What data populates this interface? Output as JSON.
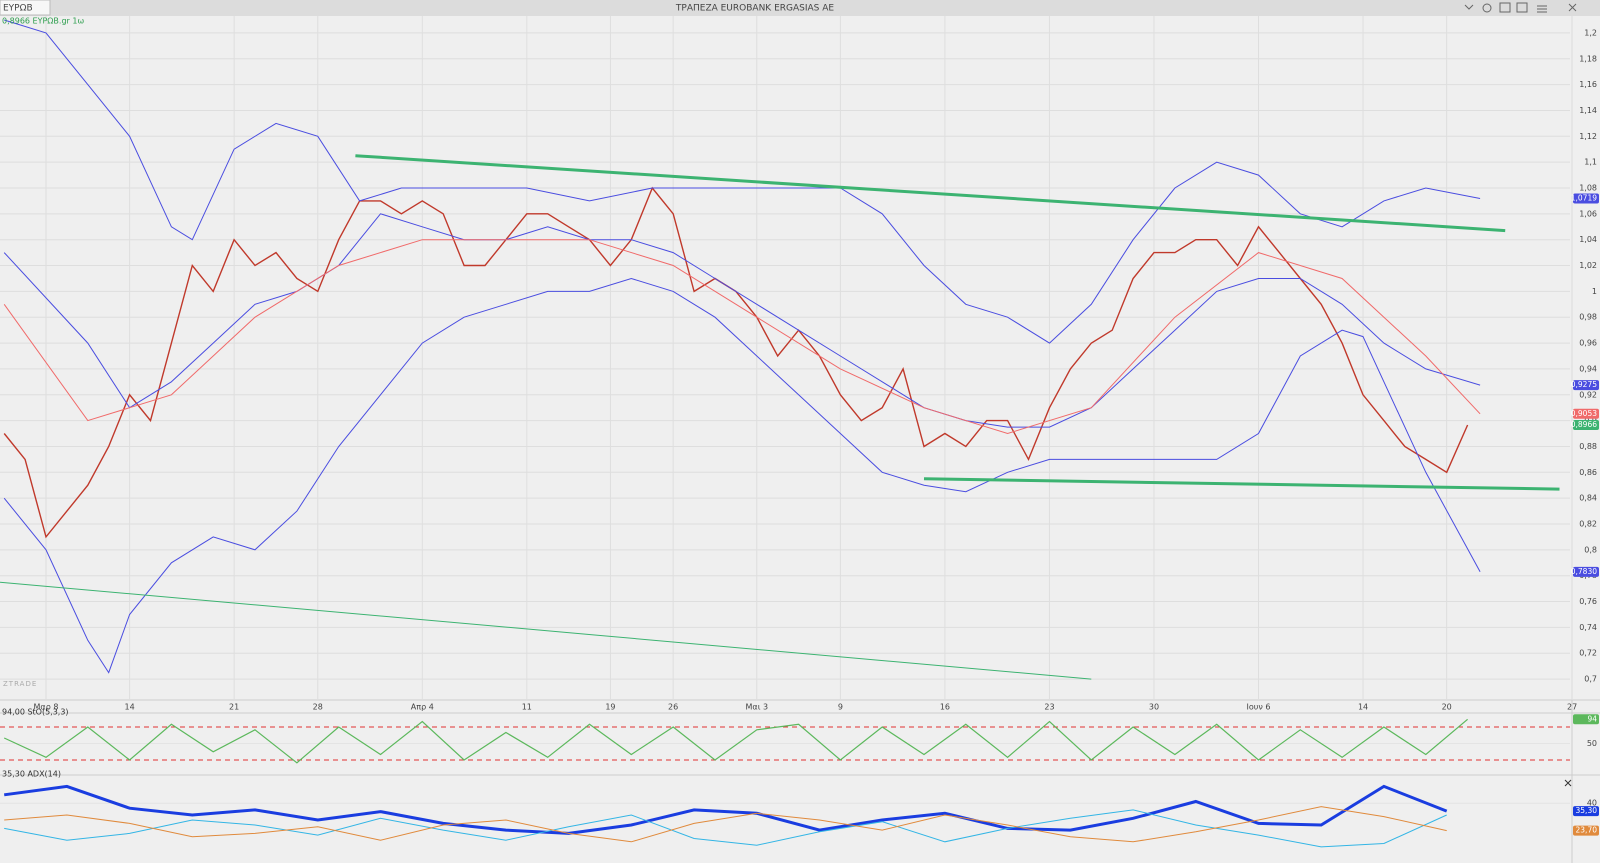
{
  "header": {
    "symbol": "ΕΥΡΩΒ",
    "title": "ΤΡΑΠΕΖΑ EUROBANK ERGASIAS AE"
  },
  "chart_data": [
    {
      "type": "line",
      "legend_label": "0,8966 ΕΥΡΩΒ.gr 1ω",
      "watermark": "ZTRADE",
      "grid": true,
      "xlim": [
        -2.2,
        72.9
      ],
      "ylim": [
        0.69,
        1.21
      ],
      "xticks": [
        {
          "value": 0,
          "label": "Μαρ 8"
        },
        {
          "value": 4,
          "label": "14"
        },
        {
          "value": 9,
          "label": "21"
        },
        {
          "value": 13,
          "label": "28"
        },
        {
          "value": 18,
          "label": "Απρ 4"
        },
        {
          "value": 23,
          "label": "11"
        },
        {
          "value": 27,
          "label": "19"
        },
        {
          "value": 30,
          "label": "26"
        },
        {
          "value": 34,
          "label": "Μαι 3"
        },
        {
          "value": 38,
          "label": "9"
        },
        {
          "value": 43,
          "label": "16"
        },
        {
          "value": 48,
          "label": "23"
        },
        {
          "value": 53,
          "label": "30"
        },
        {
          "value": 58,
          "label": "Ιουν 6"
        },
        {
          "value": 63,
          "label": "14"
        },
        {
          "value": 67,
          "label": "20"
        },
        {
          "value": 73,
          "label": "27"
        }
      ],
      "yticks": [
        {
          "value": 0.7,
          "label": "0,7"
        },
        {
          "value": 0.72,
          "label": "0,72"
        },
        {
          "value": 0.74,
          "label": "0,74"
        },
        {
          "value": 0.76,
          "label": "0,76"
        },
        {
          "value": 0.78,
          "label": "0,78"
        },
        {
          "value": 0.8,
          "label": "0,8"
        },
        {
          "value": 0.82,
          "label": "0,82"
        },
        {
          "value": 0.84,
          "label": "0,84"
        },
        {
          "value": 0.86,
          "label": "0,86"
        },
        {
          "value": 0.88,
          "label": "0,88"
        },
        {
          "value": 0.9,
          "label": "0,9"
        },
        {
          "value": 0.92,
          "label": "0,92"
        },
        {
          "value": 0.94,
          "label": "0,94"
        },
        {
          "value": 0.96,
          "label": "0,96"
        },
        {
          "value": 0.98,
          "label": "0,98"
        },
        1,
        {
          "value": 1.02,
          "label": "1,02"
        },
        {
          "value": 1.04,
          "label": "1,04"
        },
        {
          "value": 1.06,
          "label": "1,06"
        },
        {
          "value": 1.08,
          "label": "1,08"
        },
        {
          "value": 1.1,
          "label": "1,1"
        },
        {
          "value": 1.12,
          "label": "1,12"
        },
        {
          "value": 1.14,
          "label": "1,14"
        },
        {
          "value": 1.16,
          "label": "1,16"
        },
        {
          "value": 1.18,
          "label": "1,18"
        },
        {
          "value": 1.2,
          "label": "1,2"
        }
      ],
      "series": [
        {
          "color": "#c0392b",
          "width": 1.4,
          "x": [
            -2,
            -1,
            0,
            1,
            2,
            3,
            4,
            5,
            6,
            7,
            8,
            9,
            10,
            11,
            12,
            13,
            14,
            15,
            16,
            17,
            18,
            19,
            20,
            21,
            22,
            23,
            24,
            25,
            26,
            27,
            28,
            29,
            30,
            31,
            32,
            33,
            34,
            35,
            36,
            37,
            38,
            39,
            40,
            41,
            42,
            43,
            44,
            45,
            46,
            47,
            48,
            49,
            50,
            51,
            52,
            53,
            54,
            55,
            56,
            57,
            58,
            59,
            60,
            61,
            62,
            63,
            64,
            65,
            66,
            67,
            68
          ],
          "values": [
            0.89,
            0.87,
            0.81,
            0.83,
            0.85,
            0.88,
            0.92,
            0.9,
            0.96,
            1.02,
            1.0,
            1.04,
            1.02,
            1.03,
            1.01,
            1.0,
            1.04,
            1.07,
            1.07,
            1.06,
            1.07,
            1.06,
            1.02,
            1.02,
            1.04,
            1.06,
            1.06,
            1.05,
            1.04,
            1.02,
            1.04,
            1.08,
            1.06,
            1.0,
            1.01,
            1.0,
            0.98,
            0.95,
            0.97,
            0.95,
            0.92,
            0.9,
            0.91,
            0.94,
            0.88,
            0.89,
            0.88,
            0.9,
            0.9,
            0.87,
            0.91,
            0.94,
            0.96,
            0.97,
            1.01,
            1.03,
            1.03,
            1.04,
            1.04,
            1.02,
            1.05,
            1.03,
            1.01,
            0.99,
            0.96,
            0.92,
            0.9,
            0.88,
            0.87,
            0.86,
            0.8966
          ]
        },
        {
          "color": "#4a4de0",
          "width": 1,
          "x": [
            -2,
            0,
            2,
            4,
            6,
            7,
            9,
            11,
            13,
            15,
            17,
            20,
            23,
            26,
            29,
            32,
            35,
            38,
            40,
            42,
            44,
            46,
            48,
            50,
            52,
            54,
            56,
            58,
            60,
            62,
            64,
            66,
            68.6
          ],
          "values": [
            1.21,
            1.2,
            1.16,
            1.12,
            1.05,
            1.04,
            1.11,
            1.13,
            1.12,
            1.07,
            1.08,
            1.08,
            1.08,
            1.07,
            1.08,
            1.08,
            1.08,
            1.08,
            1.06,
            1.02,
            0.99,
            0.98,
            0.96,
            0.99,
            1.04,
            1.08,
            1.1,
            1.09,
            1.06,
            1.05,
            1.07,
            1.08,
            1.0719
          ]
        },
        {
          "color": "#4a4de0",
          "width": 1,
          "x": [
            -2,
            0,
            2,
            3,
            4,
            6,
            8,
            10,
            12,
            14,
            16,
            18,
            20,
            22,
            24,
            26,
            28,
            30,
            32,
            34,
            36,
            38,
            40,
            42,
            44,
            46,
            48,
            50,
            52,
            54,
            56,
            58,
            60,
            62,
            63,
            64,
            66,
            68.6
          ],
          "values": [
            0.84,
            0.8,
            0.73,
            0.705,
            0.75,
            0.79,
            0.81,
            0.8,
            0.83,
            0.88,
            0.92,
            0.96,
            0.98,
            0.99,
            1.0,
            1.0,
            1.01,
            1.0,
            0.98,
            0.95,
            0.92,
            0.89,
            0.86,
            0.85,
            0.845,
            0.86,
            0.87,
            0.87,
            0.87,
            0.87,
            0.87,
            0.89,
            0.95,
            0.97,
            0.965,
            0.93,
            0.86,
            0.783
          ]
        },
        {
          "color": "#4a4de0",
          "width": 1,
          "x": [
            -2,
            2,
            4,
            6,
            8,
            10,
            12,
            14,
            16,
            18,
            20,
            22,
            24,
            26,
            28,
            30,
            32,
            34,
            36,
            38,
            40,
            42,
            44,
            46,
            48,
            50,
            52,
            54,
            56,
            58,
            60,
            62,
            64,
            66,
            68.6
          ],
          "values": [
            1.03,
            0.96,
            0.91,
            0.93,
            0.96,
            0.99,
            1.0,
            1.02,
            1.06,
            1.05,
            1.04,
            1.04,
            1.05,
            1.04,
            1.04,
            1.03,
            1.01,
            0.99,
            0.97,
            0.95,
            0.93,
            0.91,
            0.9,
            0.895,
            0.895,
            0.91,
            0.94,
            0.97,
            1.0,
            1.01,
            1.01,
            0.99,
            0.96,
            0.94,
            0.9275
          ]
        },
        {
          "color": "#f06a6a",
          "width": 1,
          "x": [
            -2,
            2,
            6,
            10,
            14,
            18,
            22,
            26,
            30,
            34,
            38,
            42,
            46,
            50,
            54,
            58,
            62,
            66,
            68.6
          ],
          "values": [
            0.99,
            0.9,
            0.92,
            0.98,
            1.02,
            1.04,
            1.04,
            1.04,
            1.02,
            0.98,
            0.94,
            0.91,
            0.89,
            0.91,
            0.98,
            1.03,
            1.01,
            0.95,
            0.9053
          ]
        }
      ],
      "trendlines": [
        {
          "color": "#3cb371",
          "width": 3,
          "x": [
            14.8,
            69.8
          ],
          "values": [
            1.105,
            1.047
          ]
        },
        {
          "color": "#3cb371",
          "width": 3,
          "x": [
            42,
            72.4
          ],
          "values": [
            0.855,
            0.847
          ]
        },
        {
          "color": "#3cb371",
          "width": 1,
          "x": [
            -2.2,
            50
          ],
          "values": [
            0.775,
            0.7
          ]
        }
      ],
      "price_labels": [
        {
          "value": 1.0719,
          "label": "1,0719",
          "color": "#4a4de0"
        },
        {
          "value": 0.9275,
          "label": "0,9275",
          "color": "#4a4de0"
        },
        {
          "value": 0.9053,
          "label": "0,9053",
          "color": "#f06a6a"
        },
        {
          "value": 0.8966,
          "label": "0,8966",
          "color": "#3cb371"
        },
        {
          "value": 0.783,
          "label": "0,7830",
          "color": "#4a4de0"
        }
      ]
    },
    {
      "type": "line",
      "legend_label": "94,00 StO(5,3,3)",
      "xlim": [
        -2.2,
        72.9
      ],
      "ylim": [
        0,
        100
      ],
      "yticks": [
        50
      ],
      "levels": [
        20,
        80
      ],
      "level_color": "#e03030",
      "series": [
        {
          "color": "#5cb85c",
          "width": 1.2,
          "x": [
            -2,
            0,
            2,
            4,
            6,
            8,
            10,
            12,
            14,
            16,
            18,
            20,
            22,
            24,
            26,
            28,
            30,
            32,
            34,
            36,
            38,
            40,
            42,
            44,
            46,
            48,
            50,
            52,
            54,
            56,
            58,
            60,
            62,
            64,
            66,
            68
          ],
          "values": [
            60,
            25,
            80,
            20,
            85,
            35,
            75,
            15,
            80,
            30,
            90,
            20,
            70,
            25,
            85,
            30,
            80,
            20,
            75,
            85,
            20,
            80,
            30,
            85,
            25,
            90,
            20,
            80,
            30,
            85,
            20,
            75,
            25,
            80,
            30,
            94
          ]
        }
      ],
      "price_labels": [
        {
          "value": 94,
          "label": "94",
          "color": "#5cb85c"
        }
      ]
    },
    {
      "type": "line",
      "legend_label": "35,30 ADX(14)",
      "xlim": [
        -2.2,
        72.9
      ],
      "ylim": [
        5,
        55
      ],
      "yticks": [
        40
      ],
      "series": [
        {
          "color": "#1a3de0",
          "width": 3,
          "x": [
            -2,
            1,
            4,
            7,
            10,
            13,
            16,
            19,
            22,
            25,
            28,
            31,
            34,
            37,
            40,
            43,
            46,
            49,
            52,
            55,
            58,
            61,
            64,
            67
          ],
          "values": [
            45,
            50,
            37,
            33,
            36,
            30,
            35,
            28,
            24,
            22,
            27,
            36,
            34,
            24,
            30,
            34,
            25,
            24,
            31,
            41,
            28,
            27,
            50,
            35.3
          ]
        },
        {
          "color": "#33b5e5",
          "width": 1,
          "x": [
            -2,
            1,
            4,
            7,
            10,
            13,
            16,
            19,
            22,
            25,
            28,
            31,
            34,
            37,
            40,
            43,
            46,
            49,
            52,
            55,
            58,
            61,
            64,
            67
          ],
          "values": [
            25,
            18,
            22,
            30,
            27,
            21,
            31,
            24,
            18,
            26,
            33,
            19,
            15,
            23,
            29,
            17,
            25,
            31,
            36,
            27,
            21,
            14,
            16,
            33
          ]
        },
        {
          "color": "#e08a3c",
          "width": 1,
          "x": [
            -2,
            1,
            4,
            7,
            10,
            13,
            16,
            19,
            22,
            25,
            28,
            31,
            34,
            37,
            40,
            43,
            46,
            49,
            52,
            55,
            58,
            61,
            64,
            67
          ],
          "values": [
            30,
            33,
            28,
            20,
            22,
            26,
            18,
            27,
            30,
            22,
            17,
            28,
            34,
            30,
            24,
            33,
            27,
            20,
            17,
            23,
            30,
            38,
            32,
            23.7
          ]
        }
      ],
      "price_labels": [
        {
          "value": 35.3,
          "label": "35,30",
          "color": "#1a3de0"
        },
        {
          "value": 23.7,
          "label": "23,70",
          "color": "#e08a3c"
        }
      ]
    }
  ]
}
